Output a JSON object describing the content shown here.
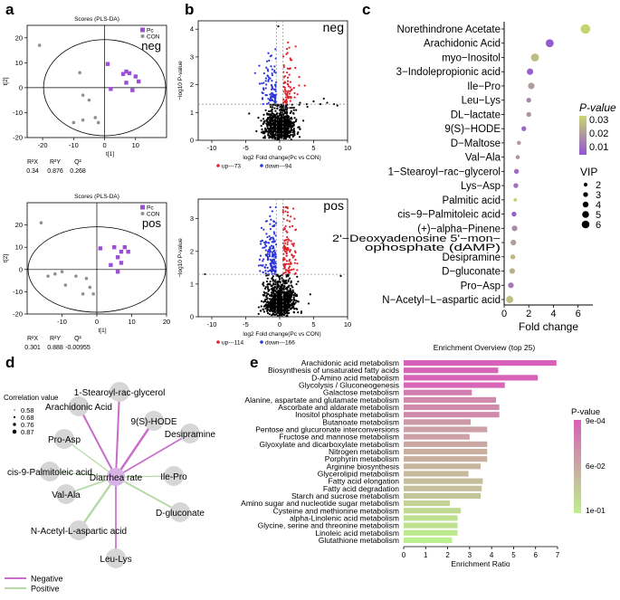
{
  "panel_letters": {
    "a": "a",
    "b": "b",
    "c": "c",
    "d": "d",
    "e": "e"
  },
  "chart_data": [
    {
      "id": "a1",
      "type": "scatter",
      "title": "Scores (PLS-DA)",
      "tag": "neg",
      "xlabel": "t[1]",
      "ylabel": "t[2]",
      "xlim": [
        -25,
        20
      ],
      "ylim": [
        -20,
        25
      ],
      "xticks": [
        -20,
        -10,
        0,
        10
      ],
      "yticks": [
        -20,
        -10,
        0,
        10,
        20
      ],
      "legend": [
        "Pc",
        "CON"
      ],
      "colors": {
        "Pc": "#9c4fd6",
        "CON": "#909090"
      },
      "series": [
        {
          "name": "Pc",
          "points": [
            [
              1,
              9.5
            ],
            [
              6,
              5.5
            ],
            [
              7,
              6.5
            ],
            [
              8,
              5.8
            ],
            [
              10,
              4.5
            ],
            [
              11,
              2.5
            ],
            [
              7,
              2
            ],
            [
              9,
              -1
            ],
            [
              2,
              -0.5
            ]
          ]
        },
        {
          "name": "CON",
          "points": [
            [
              -21,
              17
            ],
            [
              -8,
              6
            ],
            [
              -7,
              -3
            ],
            [
              -5,
              -5
            ],
            [
              -3,
              -12
            ],
            [
              -7,
              -13
            ],
            [
              -2,
              -14
            ],
            [
              -10,
              -14
            ]
          ]
        }
      ],
      "stats_labels": [
        "R²X",
        "R²Y",
        "Q²"
      ],
      "stats_values": [
        "0.34",
        "0.876",
        "0.268"
      ]
    },
    {
      "id": "a2",
      "type": "scatter",
      "title": "Scores (PLS-DA)",
      "tag": "pos",
      "xlabel": "t[1]",
      "ylabel": "t[2]",
      "xlim": [
        -20,
        20
      ],
      "ylim": [
        -20,
        30
      ],
      "xticks": [
        -10,
        0,
        10,
        20
      ],
      "yticks": [
        -20,
        -10,
        0,
        10,
        20
      ],
      "legend": [
        "Pc",
        "CON"
      ],
      "colors": {
        "Pc": "#9c4fd6",
        "CON": "#909090"
      },
      "series": [
        {
          "name": "Pc",
          "points": [
            [
              1,
              9.5
            ],
            [
              5,
              10
            ],
            [
              7,
              8
            ],
            [
              6,
              5.5
            ],
            [
              4,
              2
            ],
            [
              7,
              3
            ],
            [
              8,
              10
            ],
            [
              9,
              8
            ],
            [
              6,
              -1
            ]
          ]
        },
        {
          "name": "CON",
          "points": [
            [
              -16,
              21
            ],
            [
              -14,
              -3
            ],
            [
              -10,
              -1
            ],
            [
              -6,
              -3
            ],
            [
              -3,
              -4
            ],
            [
              -4,
              -11
            ],
            [
              -2,
              -8
            ],
            [
              -1,
              -11
            ],
            [
              -9,
              -7
            ],
            [
              -12,
              -2
            ]
          ]
        }
      ],
      "stats_labels": [
        "R²X",
        "R²Y",
        "Q²"
      ],
      "stats_values": [
        "0.301",
        "0.888",
        "-0.00955"
      ]
    },
    {
      "id": "b1",
      "type": "scatter",
      "tag": "neg",
      "xlabel": "log2 Fold change(Pc vs CON)",
      "ylabel": "−log10 P-value",
      "xlim": [
        -12,
        10
      ],
      "ylim": [
        0,
        4.3
      ],
      "xticks": [
        -10,
        -5,
        0,
        5,
        10
      ],
      "yticks": [
        0,
        1,
        2,
        3,
        4
      ],
      "threshold_p": 1.3,
      "threshold_fc": [
        -0.5,
        0.5
      ],
      "legend": [
        {
          "label": "up---73",
          "color": "#e0202a"
        },
        {
          "label": "down---94",
          "color": "#2b35d6"
        }
      ],
      "counts": {
        "up": 73,
        "down": 94,
        "ns": 800
      },
      "extra_points": [
        [
          -0.2,
          4.1
        ],
        [
          3,
          1.35
        ],
        [
          4,
          1.3
        ],
        [
          5,
          1.4
        ],
        [
          6,
          1.3
        ],
        [
          7,
          1.35
        ],
        [
          8,
          1.3
        ],
        [
          6.5,
          1.5
        ],
        [
          8.5,
          1.25
        ]
      ],
      "seed": 11
    },
    {
      "id": "b2",
      "type": "scatter",
      "tag": "pos",
      "xlabel": "log2 Fold change(Pc vs CON)",
      "ylabel": "−log10 P-value",
      "xlim": [
        -12,
        10
      ],
      "ylim": [
        0,
        3.6
      ],
      "xticks": [
        -10,
        -5,
        0,
        5,
        10
      ],
      "yticks": [
        0,
        1,
        2,
        3
      ],
      "threshold_p": 1.3,
      "threshold_fc": [
        -0.5,
        0.5
      ],
      "legend": [
        {
          "label": "up---114",
          "color": "#e0202a"
        },
        {
          "label": "down---166",
          "color": "#2b35d6"
        }
      ],
      "counts": {
        "up": 114,
        "down": 166,
        "ns": 900
      },
      "extra_points": [
        [
          9,
          1.25
        ],
        [
          -11,
          1.3
        ]
      ],
      "seed": 23
    },
    {
      "id": "c",
      "type": "scatter",
      "xlabel": "Fold change",
      "xlim": [
        0,
        7.2
      ],
      "xticks": [
        0,
        2,
        4,
        6
      ],
      "colorbar": {
        "title": "P-value",
        "ticks": [
          "0.03",
          "0.02",
          "0.01"
        ],
        "range": [
          0.003,
          0.034
        ]
      },
      "size_legend": {
        "title": "VIP",
        "values": [
          "2",
          "3",
          "4",
          "5",
          "6"
        ]
      },
      "metabolites": [
        {
          "name": "Norethindrone Acetate",
          "fc": 6.6,
          "p": 0.033,
          "vip": 5
        },
        {
          "name": "Arachidonic Acid",
          "fc": 3.7,
          "p": 0.004,
          "vip": 4
        },
        {
          "name": "myo−Inositol",
          "fc": 2.5,
          "p": 0.028,
          "vip": 4
        },
        {
          "name": "3−Indolepropionic acid",
          "fc": 2.1,
          "p": 0.006,
          "vip": 3
        },
        {
          "name": "Ile−Pro",
          "fc": 2.2,
          "p": 0.02,
          "vip": 3
        },
        {
          "name": "Leu−Lys",
          "fc": 2.0,
          "p": 0.015,
          "vip": 2
        },
        {
          "name": "DL−lactate",
          "fc": 2.0,
          "p": 0.018,
          "vip": 2
        },
        {
          "name": "9(S)−HODE",
          "fc": 1.6,
          "p": 0.008,
          "vip": 2
        },
        {
          "name": "D−Maltose",
          "fc": 1.2,
          "p": 0.02,
          "vip": 1.5
        },
        {
          "name": "Val−Ala",
          "fc": 1.1,
          "p": 0.018,
          "vip": 1.5
        },
        {
          "name": "1−Stearoyl−rac−glycerol",
          "fc": 1.0,
          "p": 0.008,
          "vip": 2
        },
        {
          "name": "Lys−Asp",
          "fc": 0.95,
          "p": 0.01,
          "vip": 2
        },
        {
          "name": "Palmitic acid",
          "fc": 0.9,
          "p": 0.032,
          "vip": 1
        },
        {
          "name": "cis−9−Palmitoleic acid",
          "fc": 0.8,
          "p": 0.006,
          "vip": 2
        },
        {
          "name": "(+)−alpha−Pinene",
          "fc": 0.85,
          "p": 0.016,
          "vip": 2.5
        },
        {
          "name": "2'−Deoxyadenosine 5'−mon-ophosphate (dAMP)",
          "fc": 0.75,
          "p": 0.02,
          "vip": 2.5
        },
        {
          "name": "Desipramine",
          "fc": 0.7,
          "p": 0.026,
          "vip": 2
        },
        {
          "name": "D−gluconate",
          "fc": 0.65,
          "p": 0.025,
          "vip": 2.5
        },
        {
          "name": "Pro−Asp",
          "fc": 0.55,
          "p": 0.012,
          "vip": 2.5
        },
        {
          "name": "N−Acetyl−L−aspartic acid",
          "fc": 0.45,
          "p": 0.028,
          "vip": 3.5
        }
      ]
    },
    {
      "id": "d",
      "type": "network",
      "legend_title": "Correlation value",
      "legend_values": [
        "0.58",
        "0.68",
        "0.76",
        "0.87"
      ],
      "center": "Diarrhea rate",
      "edge_legend": [
        {
          "label": "Negative",
          "color": "#c86ec8"
        },
        {
          "label": "Positive",
          "color": "#b6dba9"
        }
      ],
      "nodes": [
        {
          "label": "1-Stearoyl-rac-glycerol",
          "sign": "neg",
          "r": 0.76
        },
        {
          "label": "9(S)-HODE",
          "sign": "neg",
          "r": 0.87
        },
        {
          "label": "Desipramine",
          "sign": "neg",
          "r": 0.68
        },
        {
          "label": "Ile-Pro",
          "sign": "pos",
          "r": 0.58
        },
        {
          "label": "D-gluconate",
          "sign": "pos",
          "r": 0.76
        },
        {
          "label": "Leu-Lys",
          "sign": "neg",
          "r": 0.68
        },
        {
          "label": "N-Acetyl-L-aspartic acid",
          "sign": "pos",
          "r": 0.87
        },
        {
          "label": "Val-Ala",
          "sign": "pos",
          "r": 0.68
        },
        {
          "label": "cis-9-Palmitoleic acid",
          "sign": "pos",
          "r": 0.58
        },
        {
          "label": "Pro-Asp",
          "sign": "pos",
          "r": 0.58
        },
        {
          "label": "Arachidonic Acid",
          "sign": "neg",
          "r": 0.76
        }
      ]
    },
    {
      "id": "e",
      "type": "bar",
      "orientation": "horizontal",
      "title": "Enrichment Overview (top 25)",
      "xlabel": "Enrichment Ratio",
      "xlim": [
        0,
        7
      ],
      "xticks": [
        0,
        1,
        2,
        3,
        4,
        5,
        6,
        7
      ],
      "colorbar": {
        "title": "P-value",
        "ticks": [
          "9e-04",
          "6e-02",
          "1e-01"
        ]
      },
      "categories": [
        "Arachidonic acid metabolism",
        "Biosynthesis of unsaturated fatty acids",
        "D-Amino acid metabolism",
        "Glycolysis / Gluconeogenesis",
        "Galactose metabolism",
        "Alanine, aspartate and glutamate metabolism",
        "Ascorbate and aldarate metabolism",
        "Inositol phosphate metabolism",
        "Butanoate metabolism",
        "Pentose and glucuronate interconversions",
        "Fructose and mannose metabolism",
        "Glyoxylate and dicarboxylate metabolism",
        "Nitrogen metabolism",
        "Porphyrin metabolism",
        "Arginine biosynthesis",
        "Glycerolipid metabolism",
        "Fatty acid elongation",
        "Fatty acid degradation",
        "Starch and sucrose metabolism",
        "Amino sugar and nucleotide sugar metabolism",
        "Cysteine and methionine metabolism",
        "alpha-Linolenic acid metabolism",
        "Glycine, serine and threonine metabolism",
        "Linoleic acid metabolism",
        "Glutathione metabolism"
      ],
      "values": [
        6.95,
        4.3,
        6.1,
        4.6,
        3.1,
        4.2,
        4.35,
        4.35,
        3.05,
        3.8,
        3.0,
        3.8,
        3.8,
        3.8,
        3.5,
        2.95,
        3.6,
        3.55,
        3.5,
        2.1,
        2.6,
        2.45,
        2.45,
        2.45,
        2.2
      ],
      "pvalues": [
        0.0009,
        0.004,
        0.002,
        0.006,
        0.02,
        0.03,
        0.03,
        0.03,
        0.04,
        0.045,
        0.045,
        0.05,
        0.055,
        0.055,
        0.06,
        0.062,
        0.065,
        0.067,
        0.07,
        0.08,
        0.085,
        0.088,
        0.09,
        0.095,
        0.1
      ]
    }
  ]
}
